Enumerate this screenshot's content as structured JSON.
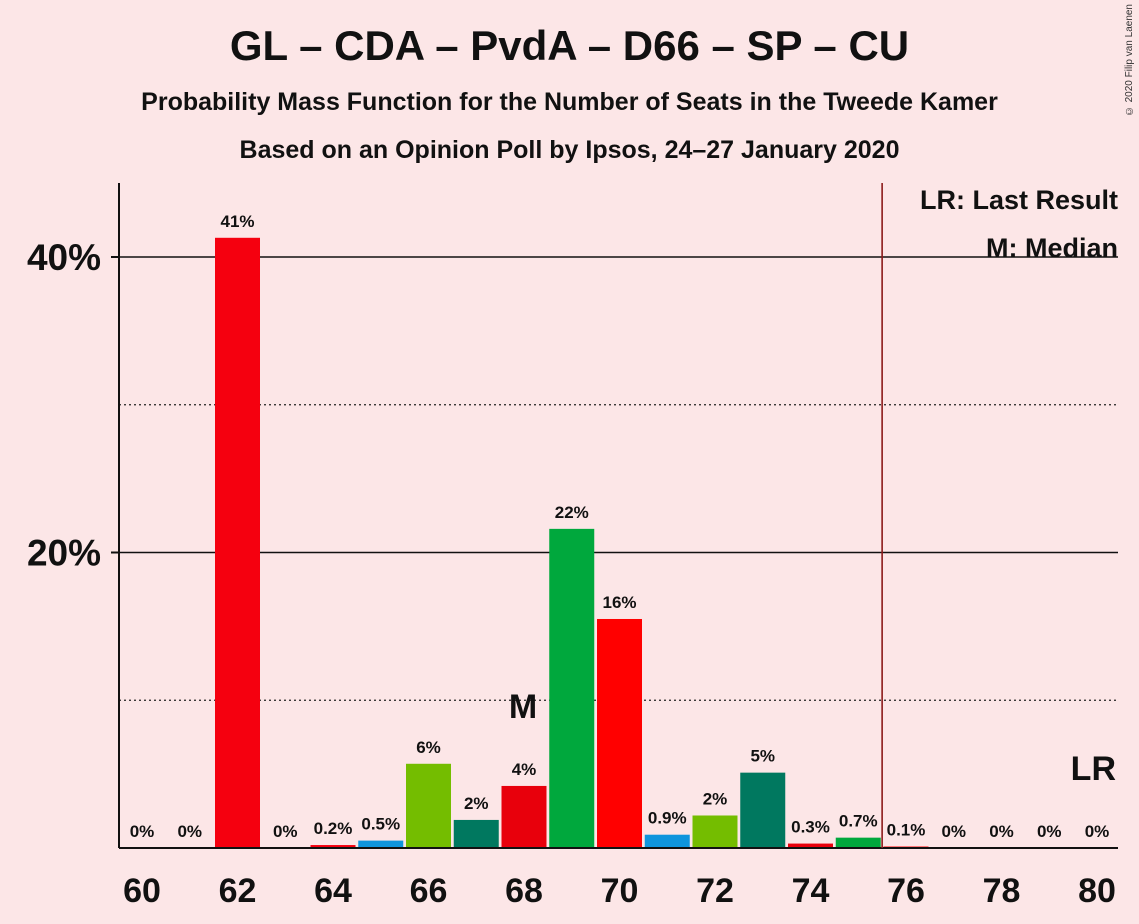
{
  "title": "GL – CDA – PvdA – D66 – SP – CU",
  "subtitle": "Probability Mass Function for the Number of Seats in the Tweede Kamer",
  "subtitle2": "Based on an Opinion Poll by Ipsos, 24–27 January 2020",
  "copyright": "© 2020 Filip van Laenen",
  "legend": {
    "lr": "LR: Last Result",
    "median": "M: Median"
  },
  "colors": {
    "background": "#fce6e7",
    "lr_line": "#8b1a1a"
  },
  "chart_data": {
    "type": "bar",
    "x": [
      60,
      61,
      62,
      63,
      64,
      65,
      66,
      67,
      68,
      69,
      70,
      71,
      72,
      73,
      74,
      75,
      76,
      77,
      78,
      79,
      80
    ],
    "values": [
      0,
      0,
      41.3,
      0,
      0.2,
      0.5,
      5.7,
      1.9,
      4.2,
      21.6,
      15.5,
      0.9,
      2.2,
      5.1,
      0.3,
      0.7,
      0.1,
      0,
      0,
      0,
      0
    ],
    "labels": [
      "0%",
      "0%",
      "41%",
      "0%",
      "0.2%",
      "0.5%",
      "6%",
      "2%",
      "4%",
      "22%",
      "16%",
      "0.9%",
      "2%",
      "5%",
      "0.3%",
      "0.7%",
      "0.1%",
      "0%",
      "0%",
      "0%",
      "0%"
    ],
    "bar_colors": [
      "#f5000f",
      "#f5000f",
      "#f5000f",
      "#f5000f",
      "#f5000f",
      "#0f95dd",
      "#74bd00",
      "#00785f",
      "#e8000c",
      "#00a83d",
      "#ff0000",
      "#0f95dd",
      "#74bd00",
      "#00785f",
      "#e8000c",
      "#00a83d",
      "#ff0000",
      "#0f95dd",
      "#74bd00",
      "#00785f",
      "#e8000c"
    ],
    "x_ticks": [
      "60",
      "62",
      "64",
      "66",
      "68",
      "70",
      "72",
      "74",
      "76",
      "78",
      "80"
    ],
    "y_ticks": [
      "20%",
      "40%"
    ],
    "ylim": [
      0,
      45
    ],
    "median_x": 68,
    "median_label": "M",
    "last_result_x": 75.5,
    "last_result_label": "LR"
  }
}
